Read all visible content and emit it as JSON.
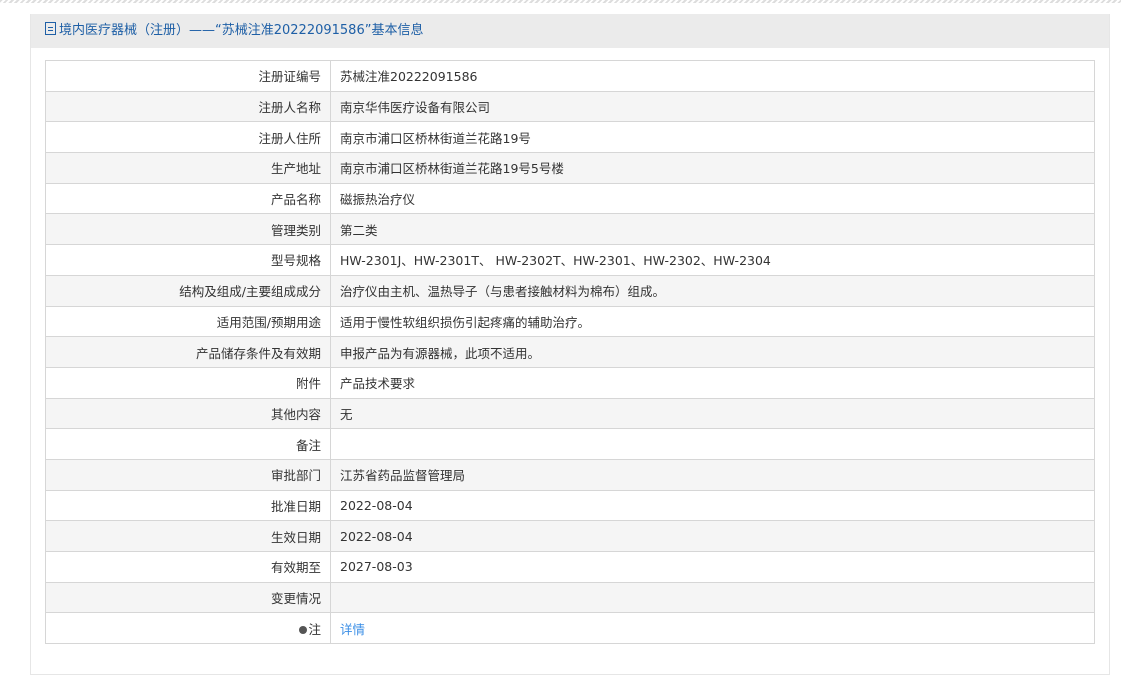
{
  "header": {
    "title": "境内医疗器械（注册）——“苏械注准20222091586”基本信息",
    "icon": "document-icon"
  },
  "rows": [
    {
      "label": "注册证编号",
      "value": "苏械注准20222091586"
    },
    {
      "label": "注册人名称",
      "value": "南京华伟医疗设备有限公司"
    },
    {
      "label": "注册人住所",
      "value": "南京市浦口区桥林街道兰花路19号"
    },
    {
      "label": "生产地址",
      "value": "南京市浦口区桥林街道兰花路19号5号楼"
    },
    {
      "label": "产品名称",
      "value": "磁振热治疗仪"
    },
    {
      "label": "管理类别",
      "value": "第二类"
    },
    {
      "label": "型号规格",
      "value": "HW-2301J、HW-2301T、 HW-2302T、HW-2301、HW-2302、HW-2304"
    },
    {
      "label": "结构及组成/主要组成成分",
      "value": "治疗仪由主机、温热导子（与患者接触材料为棉布）组成。"
    },
    {
      "label": "适用范围/预期用途",
      "value": "适用于慢性软组织损伤引起疼痛的辅助治疗。"
    },
    {
      "label": "产品储存条件及有效期",
      "value": "申报产品为有源器械，此项不适用。"
    },
    {
      "label": "附件",
      "value": "产品技术要求"
    },
    {
      "label": "其他内容",
      "value": "无"
    },
    {
      "label": "备注",
      "value": ""
    },
    {
      "label": "审批部门",
      "value": "江苏省药品监督管理局"
    },
    {
      "label": "批准日期",
      "value": "2022-08-04"
    },
    {
      "label": "生效日期",
      "value": "2022-08-04"
    },
    {
      "label": "有效期至",
      "value": "2027-08-03"
    },
    {
      "label": "变更情况",
      "value": ""
    }
  ],
  "note": {
    "label": "注",
    "icon": "pin-icon",
    "link": "详情"
  }
}
